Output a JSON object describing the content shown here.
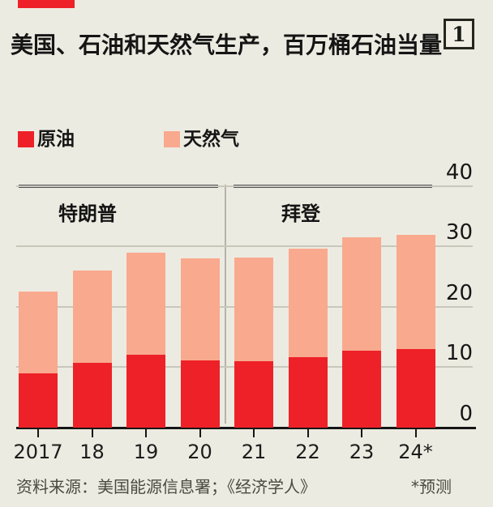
{
  "header": {
    "title": "美国、石油和天然气生产，百万桶石油当量",
    "figure_number": "1"
  },
  "colors": {
    "background": "#ecebe1",
    "brand_red": "#ee2128",
    "crude_oil": "#ee2128",
    "natural_gas": "#f9a98e",
    "gridline": "#c9c7bc",
    "era_line": "#53555a",
    "era_divider": "#b5b3aa",
    "axis": "#161616"
  },
  "chart_data": {
    "type": "bar",
    "stacked": true,
    "title": "美国、石油和天然气生产，百万桶石油当量",
    "categories": [
      "2017",
      "18",
      "19",
      "20",
      "21",
      "22",
      "23",
      "24*"
    ],
    "series": [
      {
        "name": "原油",
        "color": "#ee2128",
        "values": [
          9.0,
          10.7,
          12.0,
          11.1,
          11.0,
          11.7,
          12.7,
          13.0
        ]
      },
      {
        "name": "天然气",
        "color": "#f9a98e",
        "values": [
          13.6,
          15.3,
          16.9,
          16.9,
          17.2,
          17.9,
          18.8,
          18.9
        ]
      }
    ],
    "totals": [
      22.6,
      26.0,
      28.9,
      28.0,
      28.2,
      29.6,
      31.5,
      31.9
    ],
    "xlabel": "",
    "ylabel": "",
    "ylim": [
      0,
      40
    ],
    "yticks": [
      0,
      10,
      20,
      30,
      40
    ],
    "grid": "horizontal",
    "legend_position": "top-left",
    "era_annotations": [
      {
        "label": "特朗普",
        "span": [
          "2017",
          "20"
        ]
      },
      {
        "label": "拜登",
        "span": [
          "21",
          "24*"
        ]
      }
    ]
  },
  "footer": {
    "source": "资料来源：美国能源信息署；《经济学人》",
    "footnote": "*预测"
  }
}
